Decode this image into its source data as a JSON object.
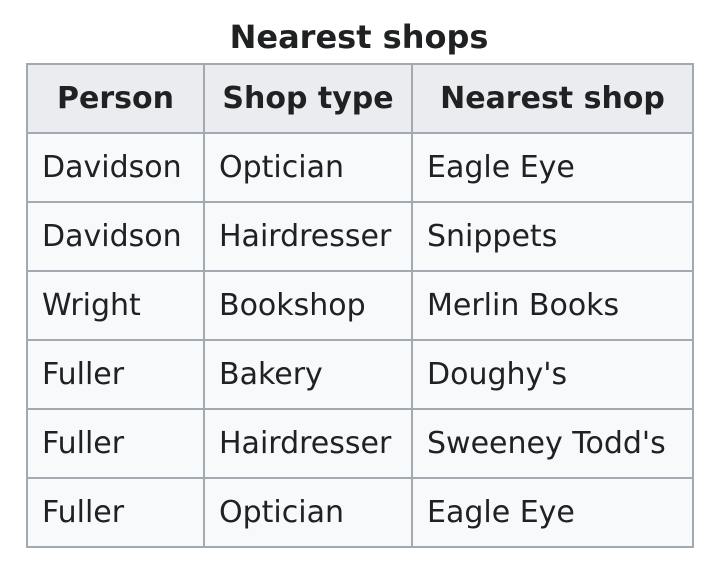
{
  "table": {
    "caption": "Nearest shops",
    "headers": [
      "Person",
      "Shop type",
      "Nearest shop"
    ],
    "rows": [
      [
        "Davidson",
        "Optician",
        "Eagle Eye"
      ],
      [
        "Davidson",
        "Hairdresser",
        "Snippets"
      ],
      [
        "Wright",
        "Bookshop",
        "Merlin Books"
      ],
      [
        "Fuller",
        "Bakery",
        "Doughy's"
      ],
      [
        "Fuller",
        "Hairdresser",
        "Sweeney Todd's"
      ],
      [
        "Fuller",
        "Optician",
        "Eagle Eye"
      ]
    ]
  },
  "colors": {
    "border": "#a2a9b1",
    "header_bg": "#eaecf0",
    "cell_bg": "#f8f9fa",
    "text": "#202122"
  }
}
